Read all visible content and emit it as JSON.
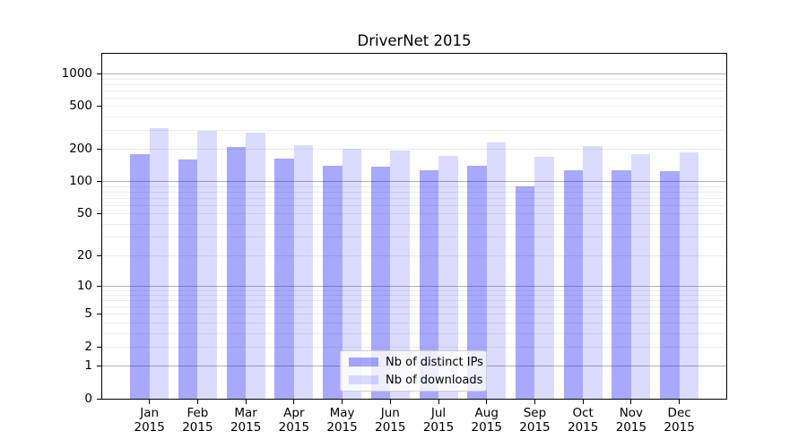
{
  "chart_data": {
    "type": "bar",
    "title": "DriverNet 2015",
    "categories": [
      "Jan",
      "Feb",
      "Mar",
      "Apr",
      "May",
      "Jun",
      "Jul",
      "Aug",
      "Sep",
      "Oct",
      "Nov",
      "Dec"
    ],
    "category_year": "2015",
    "series": [
      {
        "name": "Nb of distinct IPs",
        "color": "rgba(0,0,255,0.34)",
        "solid_hex": "#a9a9f8",
        "values": [
          180,
          160,
          212,
          163,
          142,
          139,
          129,
          140,
          90,
          128,
          129,
          125
        ]
      },
      {
        "name": "Nb of downloads",
        "color": "rgba(0,0,255,0.14)",
        "solid_hex": "#dcdcfb",
        "values": [
          315,
          295,
          287,
          219,
          204,
          197,
          173,
          232,
          170,
          215,
          182,
          187
        ]
      }
    ],
    "xlabel": "",
    "ylabel": "",
    "yscale": "log1p",
    "ylim": [
      0,
      1537
    ],
    "ytick_values": [
      0,
      1,
      2,
      5,
      10,
      20,
      50,
      100,
      200,
      500,
      1000
    ],
    "grid": {
      "on": true,
      "major": [
        1,
        10,
        100,
        1000
      ],
      "minor": [
        2,
        3,
        4,
        5,
        6,
        7,
        8,
        9,
        20,
        30,
        40,
        50,
        60,
        70,
        80,
        90,
        200,
        300,
        400,
        500,
        600,
        700,
        800,
        900
      ]
    },
    "legend_position": "lower center",
    "colors": {
      "grid_major": "#b2b2b2",
      "grid_minor": "#ececec",
      "spine": "#000000",
      "legend_border": "#cccccc"
    }
  }
}
